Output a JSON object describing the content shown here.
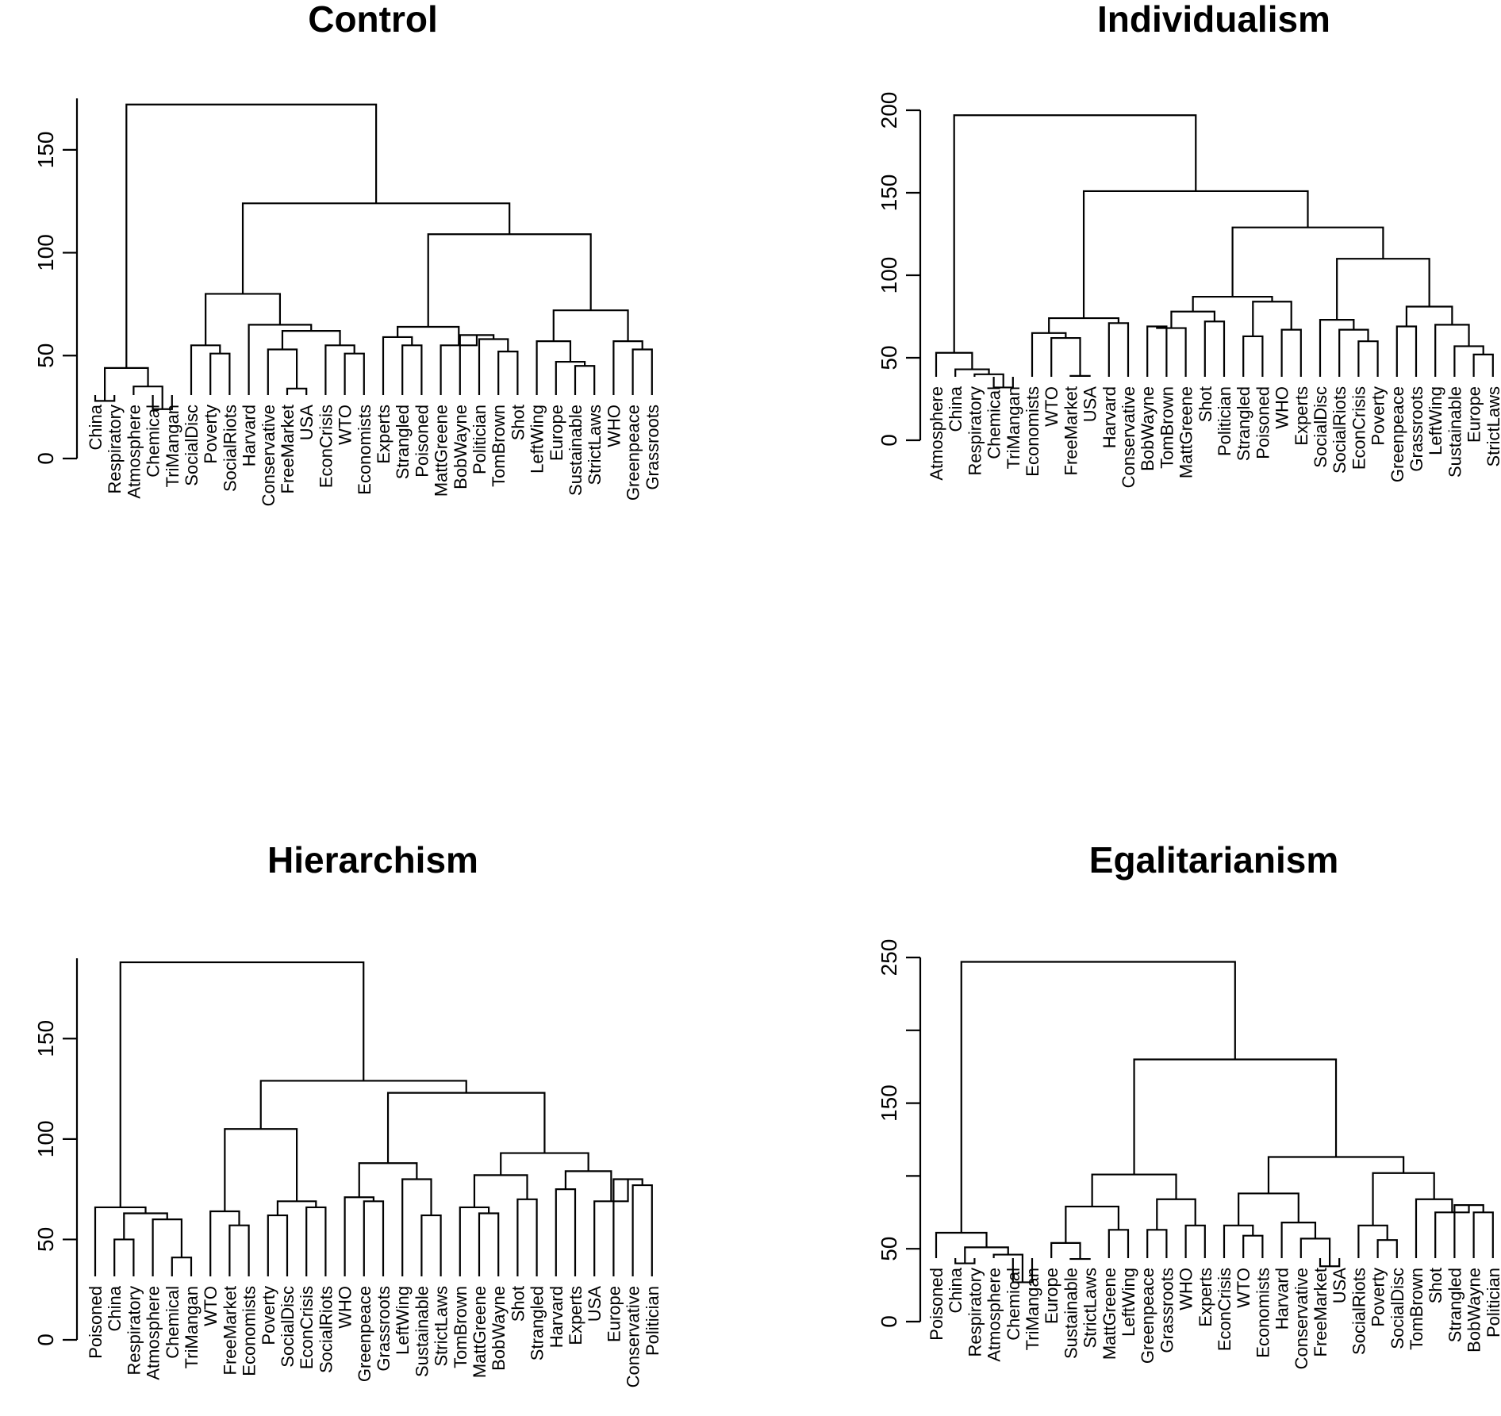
{
  "chart_data": [
    {
      "type": "dendrogram",
      "title": "Control",
      "yticks": [
        0,
        50,
        100,
        150
      ],
      "ylim": [
        0,
        175
      ],
      "leaves": [
        "China",
        "Respiratory",
        "Atmosphere",
        "Chemical",
        "TriMangan",
        "SocialDisc",
        "Poverty",
        "SocialRiots",
        "Harvard",
        "Conservative",
        "FreeMarket",
        "USA",
        "EconCrisis",
        "WTO",
        "Economists",
        "Experts",
        "Strangled",
        "Poisoned",
        "MattGreene",
        "BobWayne",
        "Politician",
        "TomBrown",
        "Shot",
        "LeftWing",
        "Europe",
        "Sustainable",
        "StrictLaws",
        "WHO",
        "Greenpeace",
        "Grassroots"
      ],
      "merges": [
        [
          0,
          1,
          28
        ],
        [
          3,
          4,
          24
        ],
        [
          2,
          "c1",
          35
        ],
        [
          "c0",
          "c2",
          44
        ],
        [
          6,
          7,
          51
        ],
        [
          5,
          "c4",
          55
        ],
        [
          10,
          11,
          34
        ],
        [
          9,
          "c6",
          53
        ],
        [
          13,
          14,
          51
        ],
        [
          12,
          "c8",
          55
        ],
        [
          "c7",
          "c9",
          62
        ],
        [
          8,
          "c10",
          65
        ],
        [
          "c5",
          "c11",
          80
        ],
        [
          16,
          17,
          55
        ],
        [
          15,
          "c13",
          59
        ],
        [
          21,
          22,
          52
        ],
        [
          20,
          "c15",
          58
        ],
        [
          19,
          "c16",
          60
        ],
        [
          18,
          "c17",
          55
        ],
        [
          "c14",
          "c18",
          64
        ],
        [
          25,
          26,
          45
        ],
        [
          24,
          "c20",
          47
        ],
        [
          23,
          "c21",
          57
        ],
        [
          28,
          29,
          53
        ],
        [
          27,
          "c23",
          57
        ],
        [
          "c22",
          "c24",
          72
        ],
        [
          "c19",
          "c25",
          109
        ],
        [
          "c12",
          "c26",
          124
        ],
        [
          "c3",
          "c27",
          172
        ]
      ]
    },
    {
      "type": "dendrogram",
      "title": "Individualism",
      "yticks": [
        0,
        50,
        100,
        150,
        200
      ],
      "ylim": [
        0,
        200
      ],
      "leaves": [
        "Atmosphere",
        "China",
        "Respiratory",
        "Chemical",
        "TriMangan",
        "Economists",
        "WTO",
        "FreeMarket",
        "USA",
        "Harvard",
        "Conservative",
        "BobWayne",
        "TomBrown",
        "MattGreene",
        "Shot",
        "Politician",
        "Strangled",
        "Poisoned",
        "WHO",
        "Experts",
        "SocialDisc",
        "SocialRiots",
        "EconCrisis",
        "Poverty",
        "Greenpeace",
        "Grassroots",
        "LeftWing",
        "Sustainable",
        "Europe",
        "StrictLaws"
      ],
      "merges": [
        [
          3,
          4,
          32
        ],
        [
          2,
          "c0",
          40
        ],
        [
          1,
          "c1",
          43
        ],
        [
          0,
          "c2",
          53
        ],
        [
          7,
          8,
          39
        ],
        [
          6,
          "c4",
          62
        ],
        [
          5,
          "c5",
          65
        ],
        [
          9,
          10,
          71
        ],
        [
          "c6",
          "c7",
          74
        ],
        [
          11,
          12,
          69
        ],
        [
          13,
          "c9",
          68
        ],
        [
          14,
          15,
          72
        ],
        [
          "c10",
          "c11",
          78
        ],
        [
          16,
          17,
          63
        ],
        [
          18,
          19,
          67
        ],
        [
          "c13",
          "c14",
          84
        ],
        [
          "c12",
          "c15",
          87
        ],
        [
          22,
          23,
          60
        ],
        [
          21,
          "c17",
          67
        ],
        [
          20,
          "c18",
          73
        ],
        [
          24,
          25,
          69
        ],
        [
          28,
          29,
          52
        ],
        [
          27,
          "c21",
          57
        ],
        [
          26,
          "c22",
          70
        ],
        [
          "c20",
          "c23",
          81
        ],
        [
          "c19",
          "c24",
          110
        ],
        [
          "c16",
          "c25",
          129
        ],
        [
          "c8",
          "c26",
          151
        ],
        [
          "c3",
          "c27",
          197
        ]
      ]
    },
    {
      "type": "dendrogram",
      "title": "Hierarchism",
      "yticks": [
        0,
        50,
        100,
        150
      ],
      "ylim": [
        0,
        190
      ],
      "leaves": [
        "Poisoned",
        "China",
        "Respiratory",
        "Atmosphere",
        "Chemical",
        "TriMangan",
        "WTO",
        "FreeMarket",
        "Economists",
        "Poverty",
        "SocialDisc",
        "EconCrisis",
        "SocialRiots",
        "WHO",
        "Greenpeace",
        "Grassroots",
        "LeftWing",
        "Sustainable",
        "StrictLaws",
        "TomBrown",
        "MattGreene",
        "BobWayne",
        "Shot",
        "Strangled",
        "Harvard",
        "Experts",
        "USA",
        "Europe",
        "Conservative",
        "Politician"
      ],
      "merges": [
        [
          1,
          2,
          50
        ],
        [
          4,
          5,
          41
        ],
        [
          3,
          "c1",
          60
        ],
        [
          "c0",
          "c2",
          63
        ],
        [
          0,
          "c3",
          66
        ],
        [
          7,
          8,
          57
        ],
        [
          6,
          "c5",
          64
        ],
        [
          9,
          10,
          62
        ],
        [
          11,
          12,
          66
        ],
        [
          "c7",
          "c8",
          69
        ],
        [
          "c6",
          "c9",
          105
        ],
        [
          14,
          15,
          69
        ],
        [
          13,
          "c11",
          71
        ],
        [
          17,
          18,
          62
        ],
        [
          16,
          "c13",
          80
        ],
        [
          "c12",
          "c14",
          88
        ],
        [
          20,
          21,
          63
        ],
        [
          19,
          "c16",
          66
        ],
        [
          22,
          23,
          70
        ],
        [
          "c17",
          "c18",
          82
        ],
        [
          24,
          25,
          75
        ],
        [
          28,
          29,
          77
        ],
        [
          27,
          "c21",
          80
        ],
        [
          26,
          "c22",
          69
        ],
        [
          "c20",
          "c23",
          84
        ],
        [
          "c19",
          "c24",
          93
        ],
        [
          "c15",
          "c25",
          123
        ],
        [
          "c10",
          "c26",
          129
        ],
        [
          "c4",
          "c27",
          188
        ]
      ]
    },
    {
      "type": "dendrogram",
      "title": "Egalitarianism",
      "yticks": [
        0,
        50,
        100,
        150,
        200,
        250
      ],
      "ytick_labels": [
        "0",
        "50",
        "",
        "150",
        "",
        "250"
      ],
      "ylim": [
        0,
        250
      ],
      "leaves": [
        "Poisoned",
        "China",
        "Respiratory",
        "Atmosphere",
        "Chemical",
        "TriMangan",
        "Europe",
        "Sustainable",
        "StrictLaws",
        "MattGreene",
        "LeftWing",
        "Greenpeace",
        "Grassroots",
        "WHO",
        "Experts",
        "EconCrisis",
        "WTO",
        "Economists",
        "Harvard",
        "Conservative",
        "FreeMarket",
        "USA",
        "SocialRiots",
        "Poverty",
        "SocialDisc",
        "TomBrown",
        "Shot",
        "Strangled",
        "BobWayne",
        "Politician"
      ],
      "merges": [
        [
          1,
          2,
          40
        ],
        [
          4,
          5,
          27
        ],
        [
          3,
          "c1",
          46
        ],
        [
          "c0",
          "c2",
          51
        ],
        [
          0,
          "c3",
          61
        ],
        [
          7,
          8,
          43
        ],
        [
          6,
          "c5",
          54
        ],
        [
          9,
          10,
          63
        ],
        [
          "c6",
          "c7",
          79
        ],
        [
          11,
          12,
          63
        ],
        [
          13,
          14,
          66
        ],
        [
          "c9",
          "c10",
          84
        ],
        [
          "c8",
          "c11",
          101
        ],
        [
          16,
          17,
          59
        ],
        [
          15,
          "c13",
          66
        ],
        [
          20,
          21,
          38
        ],
        [
          19,
          "c15",
          57
        ],
        [
          18,
          "c16",
          68
        ],
        [
          "c14",
          "c17",
          88
        ],
        [
          23,
          24,
          56
        ],
        [
          22,
          "c19",
          66
        ],
        [
          28,
          29,
          75
        ],
        [
          27,
          "c21",
          80
        ],
        [
          26,
          "c22",
          75
        ],
        [
          25,
          "c23",
          84
        ],
        [
          "c20",
          "c24",
          102
        ],
        [
          "c18",
          "c25",
          113
        ],
        [
          "c12",
          "c26",
          180
        ],
        [
          "c4",
          "c27",
          247
        ]
      ]
    }
  ]
}
